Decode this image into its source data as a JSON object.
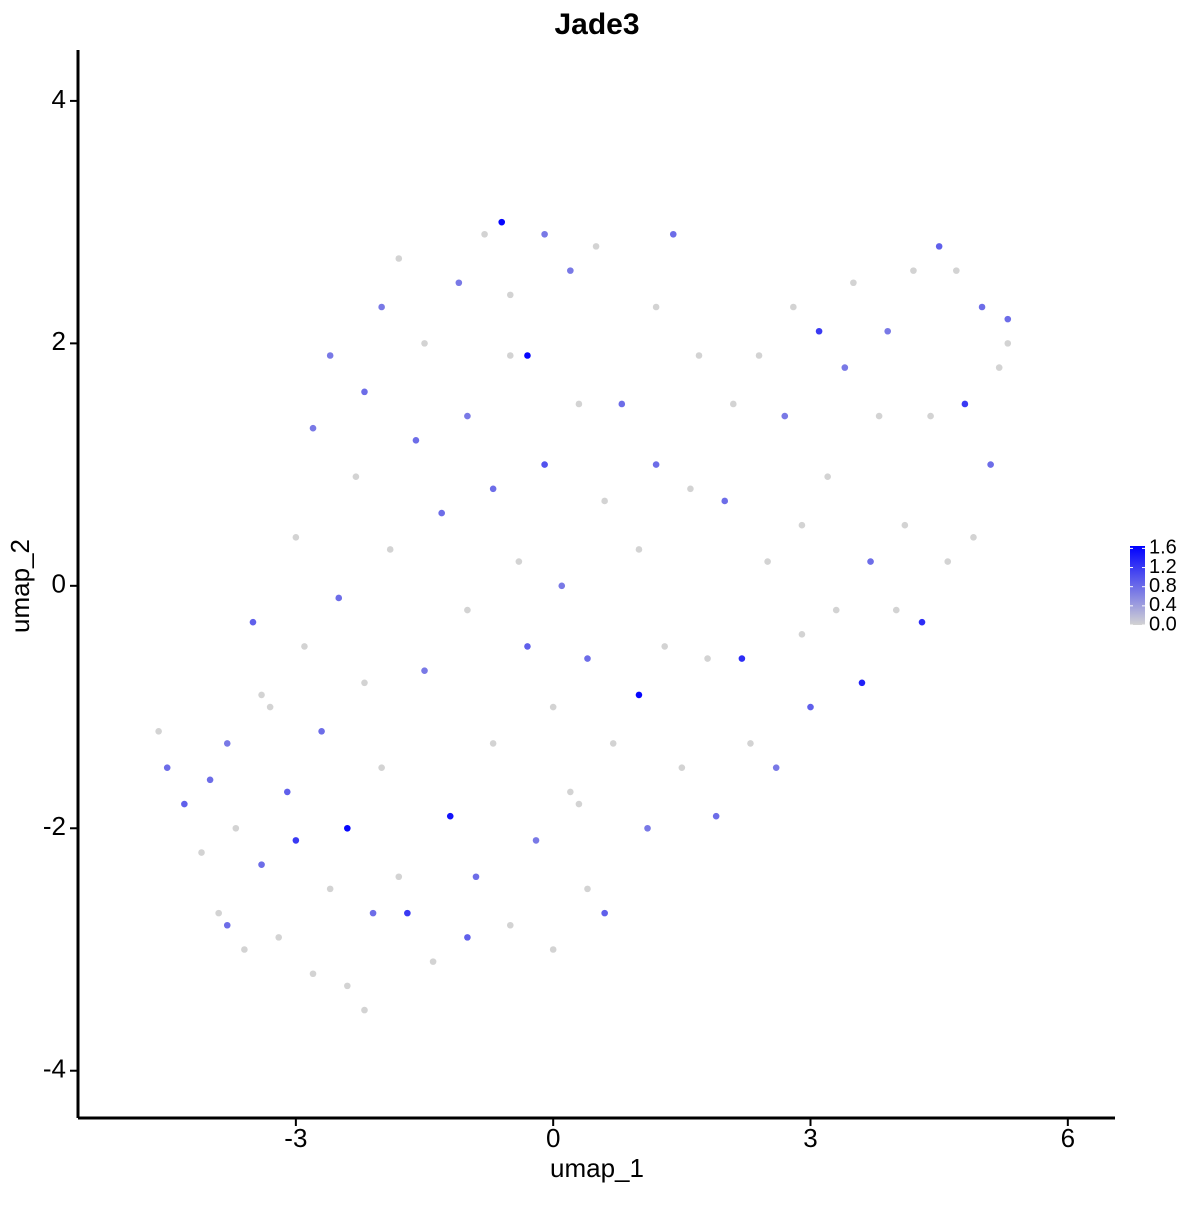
{
  "chart_data": {
    "type": "scatter",
    "title": "Jade3",
    "x_label": "umap_1",
    "y_label": "umap_2",
    "xlim": [
      -5.54,
      6.55
    ],
    "ylim": [
      -4.39,
      4.42
    ],
    "xticks": [
      -3,
      0,
      3,
      6
    ],
    "yticks": [
      -4,
      -2,
      0,
      2,
      4
    ],
    "low_color": "#d3d3d3",
    "high_color": "#0000ff",
    "colorlim": [
      0,
      1.65
    ],
    "colorticks": [
      {
        "value": 0,
        "label": "0.0"
      },
      0.4,
      0.8,
      1.2,
      1.6
    ],
    "x": [
      -4.6,
      -4.5,
      -4.3,
      -4.1,
      -4.0,
      -3.9,
      -3.8,
      -3.7,
      -3.6,
      -3.5,
      -3.4,
      -3.3,
      -3.2,
      -3.1,
      -3.0,
      -3.0,
      -2.9,
      -2.8,
      -2.8,
      -2.7,
      -2.6,
      -2.6,
      -2.5,
      -2.4,
      -2.4,
      -2.3,
      -2.2,
      -2.2,
      -2.1,
      -2.0,
      -2.0,
      -1.9,
      -1.8,
      -1.8,
      -1.7,
      -1.6,
      -1.5,
      -1.5,
      -1.4,
      -1.3,
      -1.2,
      -1.1,
      -1.0,
      -1.0,
      -0.9,
      -0.8,
      -0.7,
      -0.7,
      -0.6,
      -0.5,
      -0.5,
      -0.4,
      -0.3,
      -0.3,
      -0.2,
      -0.1,
      -0.1,
      0.0,
      0.0,
      0.1,
      0.2,
      0.2,
      0.3,
      0.4,
      0.4,
      0.5,
      0.6,
      0.6,
      0.7,
      0.8,
      1.0,
      1.0,
      1.1,
      1.2,
      1.3,
      1.4,
      1.5,
      1.6,
      1.7,
      1.8,
      1.9,
      2.0,
      2.1,
      2.2,
      2.3,
      2.4,
      2.5,
      2.6,
      2.7,
      2.8,
      2.9,
      3.0,
      3.1,
      3.2,
      3.3,
      3.4,
      3.5,
      3.6,
      3.7,
      3.8,
      3.9,
      4.0,
      4.1,
      4.2,
      4.3,
      4.4,
      4.5,
      4.6,
      4.7,
      4.8,
      4.9,
      5.0,
      5.1,
      5.2,
      5.3,
      5.3,
      -3.8,
      -2.2,
      -1.0,
      0.3,
      -3.4,
      -0.5,
      1.2,
      2.9
    ],
    "y": [
      -1.2,
      -1.5,
      -1.8,
      -2.2,
      -1.6,
      -2.7,
      -1.3,
      -2.0,
      -3.0,
      -0.3,
      -2.3,
      -1.0,
      -2.9,
      -1.7,
      -2.1,
      0.4,
      -0.5,
      -3.2,
      1.3,
      -1.2,
      -2.5,
      1.9,
      -0.1,
      -2.0,
      -3.3,
      0.9,
      1.6,
      -0.8,
      -2.7,
      2.3,
      -1.5,
      0.3,
      2.7,
      -2.4,
      -2.7,
      1.2,
      -0.7,
      2.0,
      -3.1,
      0.6,
      -1.9,
      2.5,
      -0.2,
      1.4,
      -2.4,
      2.9,
      -1.3,
      0.8,
      3.0,
      -2.8,
      1.9,
      0.2,
      -0.5,
      1.9,
      -2.1,
      2.9,
      1.0,
      -3.0,
      -1.0,
      0.0,
      2.6,
      -1.7,
      1.5,
      -0.6,
      -2.5,
      2.8,
      0.7,
      -2.7,
      -1.3,
      1.5,
      -0.9,
      0.3,
      -2.0,
      1.0,
      -0.5,
      2.9,
      -1.5,
      0.8,
      1.9,
      -0.6,
      -1.9,
      0.7,
      1.5,
      -0.6,
      -1.3,
      1.9,
      0.2,
      -1.5,
      1.4,
      2.3,
      -0.4,
      -1.0,
      2.1,
      0.9,
      -0.2,
      1.8,
      2.5,
      -0.8,
      0.2,
      1.4,
      2.1,
      -0.2,
      0.5,
      2.6,
      -0.3,
      1.4,
      2.8,
      0.2,
      2.6,
      1.5,
      0.4,
      2.3,
      1.0,
      1.8,
      2.2,
      2.0,
      -2.8,
      -3.5,
      -2.9,
      -1.8,
      -0.9,
      2.4,
      2.3,
      0.5
    ],
    "expression": [
      0,
      0.8,
      0.9,
      0,
      0.8,
      0,
      0.7,
      0,
      0,
      0.9,
      0.8,
      0,
      0,
      0.9,
      1.2,
      0,
      0,
      0,
      0.7,
      0.8,
      0,
      0.7,
      0.8,
      1.6,
      0,
      0,
      0.8,
      0,
      0.8,
      0.7,
      0,
      0,
      0,
      0,
      1.2,
      0.8,
      0.7,
      0,
      0,
      0.8,
      1.5,
      0.7,
      0,
      0.7,
      0.8,
      0,
      0,
      0.8,
      1.6,
      0,
      0,
      0,
      0.9,
      1.6,
      0.7,
      0.7,
      1.0,
      0,
      0,
      0.7,
      0.7,
      0,
      0,
      0.8,
      0,
      0,
      0,
      0.9,
      0,
      0.8,
      1.6,
      0,
      0.7,
      0.8,
      0,
      0.8,
      0,
      0,
      0,
      0,
      0.8,
      0.8,
      0,
      1.3,
      0,
      0,
      0,
      0.7,
      0.7,
      0,
      0,
      0.9,
      1.2,
      0,
      0,
      0.7,
      0,
      1.4,
      0.8,
      0,
      0.7,
      0,
      0,
      0,
      1.3,
      0,
      0.9,
      0,
      0,
      1.2,
      0,
      0.8,
      0.8,
      0,
      0.8,
      0,
      0.8,
      0,
      0.9,
      0,
      0,
      0,
      0,
      0
    ]
  }
}
